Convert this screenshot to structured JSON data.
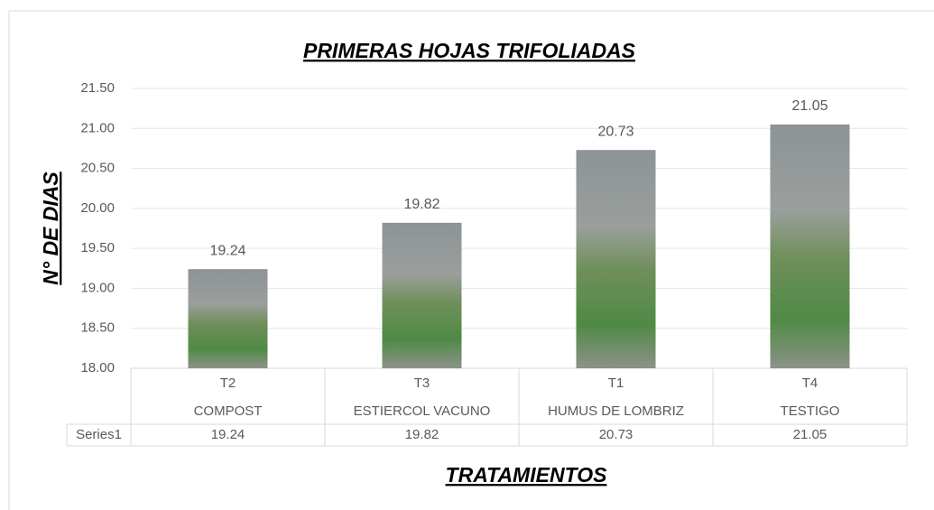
{
  "chart_data": {
    "type": "bar",
    "title": "PRIMERAS HOJAS TRIFOLIADAS",
    "y_label": "N° DE DIAS",
    "x_label": "TRATAMIENTOS",
    "categories": [
      "T2",
      "T3",
      "T1",
      "T4"
    ],
    "category_groups": [
      "COMPOST",
      "ESTIERCOL VACUNO",
      "HUMUS DE LOMBRIZ",
      "TESTIGO"
    ],
    "series": [
      {
        "name": "Series1",
        "values": [
          19.24,
          19.82,
          20.73,
          21.05
        ]
      }
    ],
    "ylim": [
      18,
      21.5
    ],
    "yticks": [
      {
        "value": 18,
        "label": "18.00"
      },
      {
        "value": 18.5,
        "label": "18.50"
      },
      {
        "value": 19,
        "label": "19.00"
      },
      {
        "value": 19.5,
        "label": "19.50"
      },
      {
        "value": 20,
        "label": "20.00"
      },
      {
        "value": 20.5,
        "label": "20.50"
      },
      {
        "value": 21,
        "label": "21.00"
      },
      {
        "value": 21.5,
        "label": "21.50"
      }
    ],
    "grid": true
  }
}
